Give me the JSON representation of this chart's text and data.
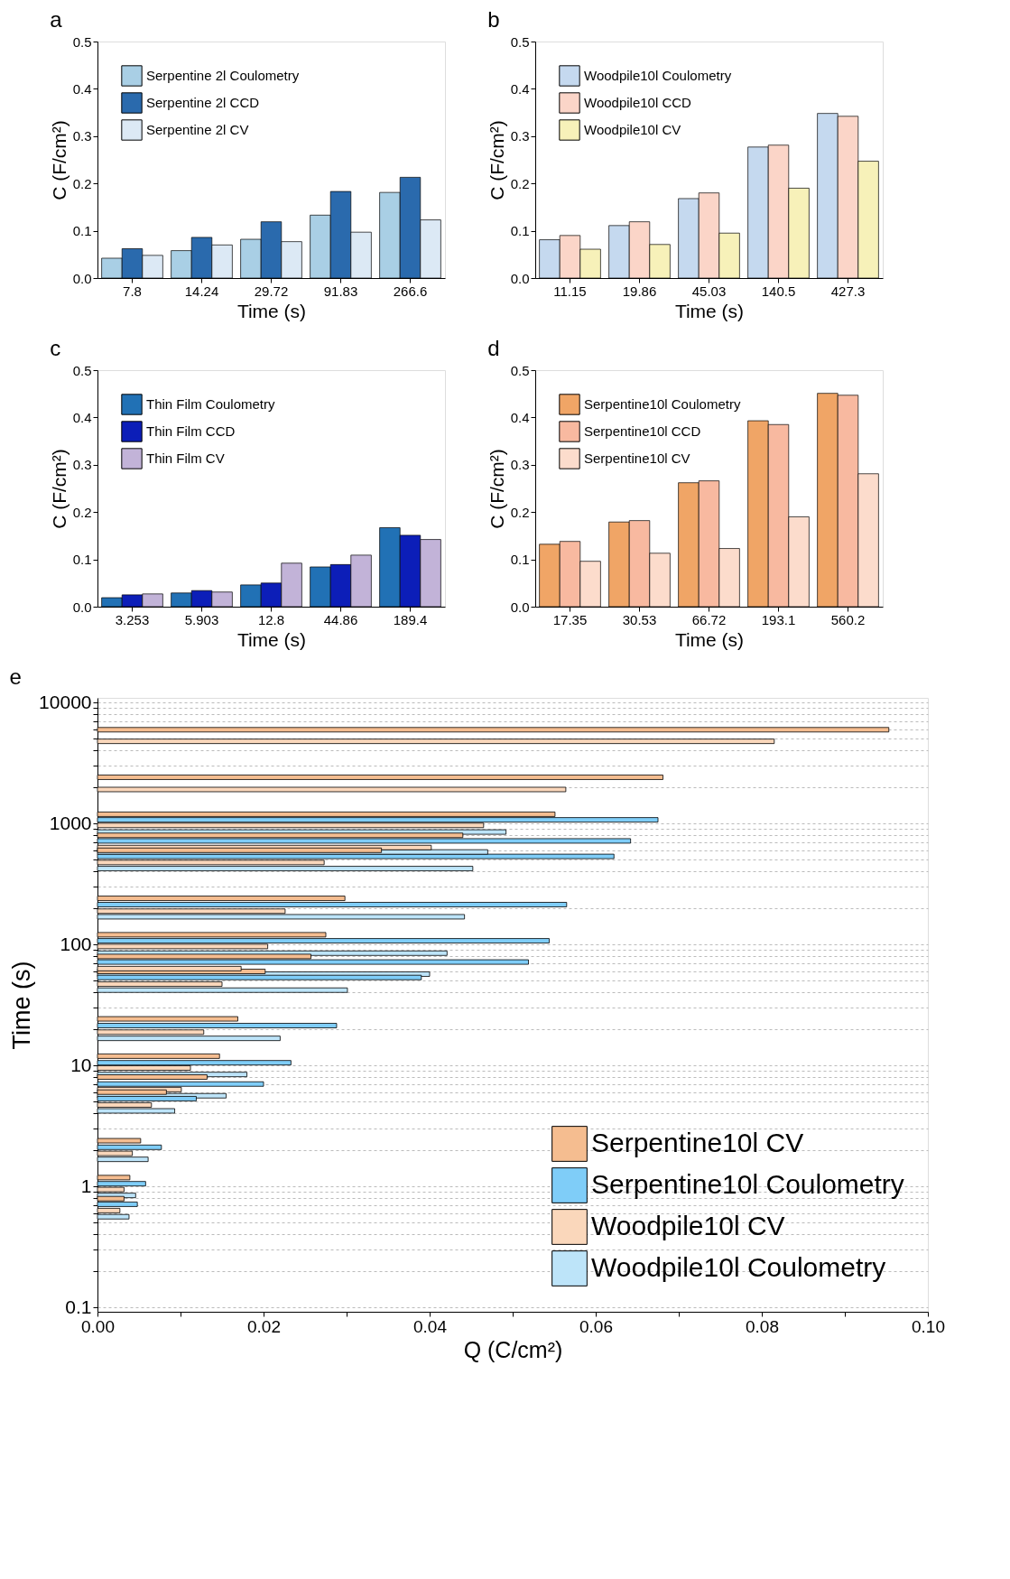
{
  "chart_data": [
    {
      "type": "bar",
      "title": "a",
      "xlabel": "Time (s)",
      "ylabel": "C (F/cm²)",
      "categories": [
        "7.8",
        "14.24",
        "29.72",
        "91.83",
        "266.6"
      ],
      "legend": "top left",
      "ylim": [
        0,
        0.5
      ],
      "yticks": [
        {
          "value": 0,
          "label": "0.0"
        },
        0.1,
        0.2,
        0.3,
        0.4,
        0.5
      ],
      "series": [
        {
          "name": "Serpentine 2l Coulometry",
          "color": "#a9cfe5",
          "values": [
            0.042,
            0.058,
            0.082,
            0.133,
            0.181
          ]
        },
        {
          "name": "Serpentine 2l CCD",
          "color": "#2a6aad",
          "values": [
            0.062,
            0.086,
            0.119,
            0.183,
            0.213
          ]
        },
        {
          "name": "Serpentine 2l CV",
          "color": "#dce9f5",
          "values": [
            0.048,
            0.07,
            0.077,
            0.097,
            0.123
          ]
        }
      ]
    },
    {
      "type": "bar",
      "title": "b",
      "xlabel": "Time (s)",
      "ylabel": "C (F/cm²)",
      "categories": [
        "11.15",
        "19.86",
        "45.03",
        "140.5",
        "427.3"
      ],
      "legend": "top left",
      "ylim": [
        0,
        0.5
      ],
      "yticks": [
        {
          "value": 0,
          "label": "0.0"
        },
        0.1,
        0.2,
        0.3,
        0.4,
        0.5
      ],
      "series": [
        {
          "name": "Woodpile10l Coulometry",
          "color": "#c5d9ef",
          "values": [
            0.081,
            0.111,
            0.168,
            0.277,
            0.348
          ]
        },
        {
          "name": "Woodpile10l CCD",
          "color": "#fbd5c8",
          "values": [
            0.09,
            0.119,
            0.18,
            0.281,
            0.342
          ]
        },
        {
          "name": "Woodpile10l CV",
          "color": "#f7f1b9",
          "values": [
            0.061,
            0.071,
            0.095,
            0.19,
            0.247
          ]
        }
      ]
    },
    {
      "type": "bar",
      "title": "c",
      "xlabel": "Time (s)",
      "ylabel": "C (F/cm²)",
      "categories": [
        "3.253",
        "5.903",
        "12.8",
        "44.86",
        "189.4"
      ],
      "legend": "top left",
      "ylim": [
        0,
        0.5
      ],
      "yticks": [
        {
          "value": 0,
          "label": "0.0"
        },
        0.1,
        0.2,
        0.3,
        0.4,
        0.5
      ],
      "series": [
        {
          "name": "Thin Film Coulometry",
          "color": "#2171b5",
          "values": [
            0.019,
            0.029,
            0.046,
            0.084,
            0.167
          ]
        },
        {
          "name": "Thin Film CCD",
          "color": "#0c1eb8",
          "values": [
            0.025,
            0.034,
            0.05,
            0.089,
            0.151
          ]
        },
        {
          "name": "Thin Film CV",
          "color": "#c2b3d8",
          "values": [
            0.027,
            0.031,
            0.092,
            0.109,
            0.142
          ]
        }
      ]
    },
    {
      "type": "bar",
      "title": "d",
      "xlabel": "Time (s)",
      "ylabel": "C (F/cm²)",
      "categories": [
        "17.35",
        "30.53",
        "66.72",
        "193.1",
        "560.2"
      ],
      "legend": "top left",
      "ylim": [
        0,
        0.5
      ],
      "yticks": [
        {
          "value": 0,
          "label": "0.0"
        },
        0.1,
        0.2,
        0.3,
        0.4,
        0.5
      ],
      "series": [
        {
          "name": "Serpentine10l Coulometry",
          "color": "#f0a566",
          "values": [
            0.132,
            0.179,
            0.262,
            0.393,
            0.451
          ]
        },
        {
          "name": "Serpentine10l CCD",
          "color": "#f8b9a0",
          "values": [
            0.138,
            0.182,
            0.266,
            0.385,
            0.447
          ]
        },
        {
          "name": "Serpentine10l CV",
          "color": "#fcdccc",
          "values": [
            0.096,
            0.113,
            0.123,
            0.19,
            0.281
          ]
        }
      ]
    },
    {
      "type": "bar",
      "title": "e",
      "orientation": "horizontal",
      "log": "y",
      "grid": "y",
      "legend": "bottom right",
      "xlabel": "Q (C/cm²)",
      "ylabel": "Time (s)",
      "xlim": [
        0,
        0.1
      ],
      "ylim": [
        0.1,
        10000
      ],
      "xticks": [
        {
          "value": 0,
          "label": "0.00"
        },
        {
          "value": 0.01,
          "label": null
        },
        {
          "value": 0.02,
          "label": "0.02"
        },
        {
          "value": 0.03,
          "label": null
        },
        {
          "value": 0.04,
          "label": "0.04"
        },
        {
          "value": 0.05,
          "label": null
        },
        {
          "value": 0.06,
          "label": "0.06"
        },
        {
          "value": 0.07,
          "label": null
        },
        {
          "value": 0.08,
          "label": "0.08"
        },
        {
          "value": 0.09,
          "label": null
        },
        {
          "value": 0.1,
          "label": "0.10"
        }
      ],
      "yticks": [
        0.1,
        {
          "value": 0.2,
          "label": null
        },
        {
          "value": 0.3,
          "label": null
        },
        {
          "value": 0.4,
          "label": null
        },
        {
          "value": 0.5,
          "label": null
        },
        {
          "value": 0.6,
          "label": null
        },
        {
          "value": 0.7,
          "label": null
        },
        {
          "value": 0.8,
          "label": null
        },
        {
          "value": 0.9,
          "label": null
        },
        1,
        {
          "value": 2,
          "label": null
        },
        {
          "value": 3,
          "label": null
        },
        {
          "value": 4,
          "label": null
        },
        {
          "value": 5,
          "label": null
        },
        {
          "value": 6,
          "label": null
        },
        {
          "value": 7,
          "label": null
        },
        {
          "value": 8,
          "label": null
        },
        {
          "value": 9,
          "label": null
        },
        10,
        {
          "value": 20,
          "label": null
        },
        {
          "value": 30,
          "label": null
        },
        {
          "value": 40,
          "label": null
        },
        {
          "value": 50,
          "label": null
        },
        {
          "value": 60,
          "label": null
        },
        {
          "value": 70,
          "label": null
        },
        {
          "value": 80,
          "label": null
        },
        {
          "value": 90,
          "label": null
        },
        100,
        {
          "value": 200,
          "label": null
        },
        {
          "value": 300,
          "label": null
        },
        {
          "value": 400,
          "label": null
        },
        {
          "value": 500,
          "label": null
        },
        {
          "value": 600,
          "label": null
        },
        {
          "value": 700,
          "label": null
        },
        {
          "value": 800,
          "label": null
        },
        {
          "value": 900,
          "label": null
        },
        1000,
        {
          "value": 2000,
          "label": null
        },
        {
          "value": 3000,
          "label": null
        },
        {
          "value": 4000,
          "label": null
        },
        {
          "value": 5000,
          "label": null
        },
        {
          "value": 6000,
          "label": null
        },
        {
          "value": 7000,
          "label": null
        },
        {
          "value": 8000,
          "label": null
        },
        {
          "value": 9000,
          "label": null
        },
        10000
      ],
      "series": [
        {
          "name": "Serpentine10l CV",
          "color": "#f5bd90",
          "x": [
            5943,
            2404,
            1189,
            796,
            599,
            240,
            120,
            79.4,
            59.7,
            24.2,
            11.9,
            8.0,
            6.0,
            2.38,
            1.18,
            0.79
          ],
          "values": [
            0.0953,
            0.0681,
            0.0551,
            0.044,
            0.0342,
            0.0298,
            0.0275,
            0.0257,
            0.0202,
            0.0169,
            0.0147,
            0.0132,
            0.0083,
            0.0052,
            0.0039,
            0.0032
          ]
        },
        {
          "name": "Serpentine10l Coulometry",
          "color": "#7fcdf8",
          "x": [
            1069,
            716,
            533,
            213,
            107,
            71.4,
            53.2,
            21.3,
            10.5,
            7.0,
            5.3,
            2.1,
            1.05,
            0.71
          ],
          "values": [
            0.0675,
            0.0642,
            0.0622,
            0.0565,
            0.0544,
            0.0519,
            0.039,
            0.0288,
            0.0233,
            0.02,
            0.0119,
            0.0077,
            0.0058,
            0.0048
          ]
        },
        {
          "name": "Woodpile10l CV",
          "color": "#fad7bb",
          "x": [
            4766,
            1905,
            962,
            631,
            475,
            188,
            96,
            63,
            46.9,
            18.8,
            9.5,
            6.3,
            4.7,
            1.87,
            0.94,
            0.63
          ],
          "values": [
            0.0815,
            0.0564,
            0.0465,
            0.0402,
            0.0273,
            0.0226,
            0.0205,
            0.0173,
            0.015,
            0.0128,
            0.0112,
            0.0101,
            0.0065,
            0.0042,
            0.0032,
            0.0027
          ]
        },
        {
          "name": "Woodpile10l Coulometry",
          "color": "#bde4f9",
          "x": [
            848,
            580,
            423,
            169,
            84.5,
            56.7,
            41.8,
            16.7,
            8.4,
            5.6,
            4.2,
            1.67,
            0.84,
            0.56
          ],
          "values": [
            0.0492,
            0.047,
            0.0452,
            0.0442,
            0.0421,
            0.04,
            0.0301,
            0.022,
            0.018,
            0.0155,
            0.0093,
            0.0061,
            0.0046,
            0.0038
          ]
        }
      ]
    }
  ]
}
